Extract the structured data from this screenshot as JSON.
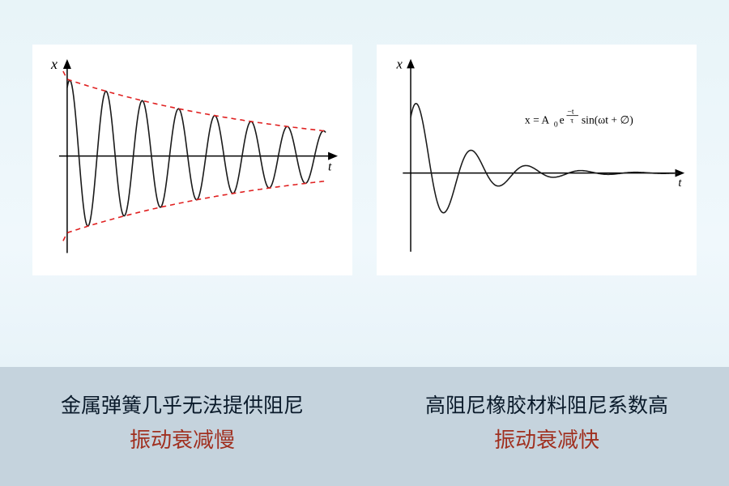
{
  "left_chart": {
    "type": "line",
    "x_label": "t",
    "y_label": "x",
    "wave_color": "#1a1a1a",
    "wave_stroke_width": 1.6,
    "envelope_color": "#e02020",
    "envelope_stroke_width": 1.6,
    "envelope_dash": "6,5",
    "axis_color": "#000000",
    "background_color": "#ffffff",
    "initial_amplitude": 95,
    "decay_constant": 0.0035,
    "angular_frequency": 0.14,
    "x_range": [
      0,
      320
    ],
    "y_center": 130,
    "plot_origin_x": 35
  },
  "right_chart": {
    "type": "line",
    "x_label": "t",
    "y_label": "x",
    "formula_text": "x = A₀e^(−t/τ) sin(ωt + ∅)",
    "wave_color": "#1a1a1a",
    "wave_stroke_width": 1.6,
    "axis_color": "#000000",
    "background_color": "#ffffff",
    "initial_amplitude": 100,
    "decay_constant": 0.016,
    "angular_frequency": 0.09,
    "x_range": [
      0,
      340
    ],
    "y_center": 155,
    "plot_origin_x": 35
  },
  "captions": {
    "left": {
      "line1": "金属弹簧几乎无法提供阻尼",
      "line2": "振动衰减慢"
    },
    "right": {
      "line1": "高阻尼橡胶材料阻尼系数高",
      "line2": "振动衰减快"
    }
  },
  "colors": {
    "page_bg_top": "#e8f4f8",
    "page_bg_bottom": "#e0eef5",
    "caption_bg": "#c5d3dd",
    "text_dark": "#0a1a2a",
    "text_red": "#a03020"
  }
}
